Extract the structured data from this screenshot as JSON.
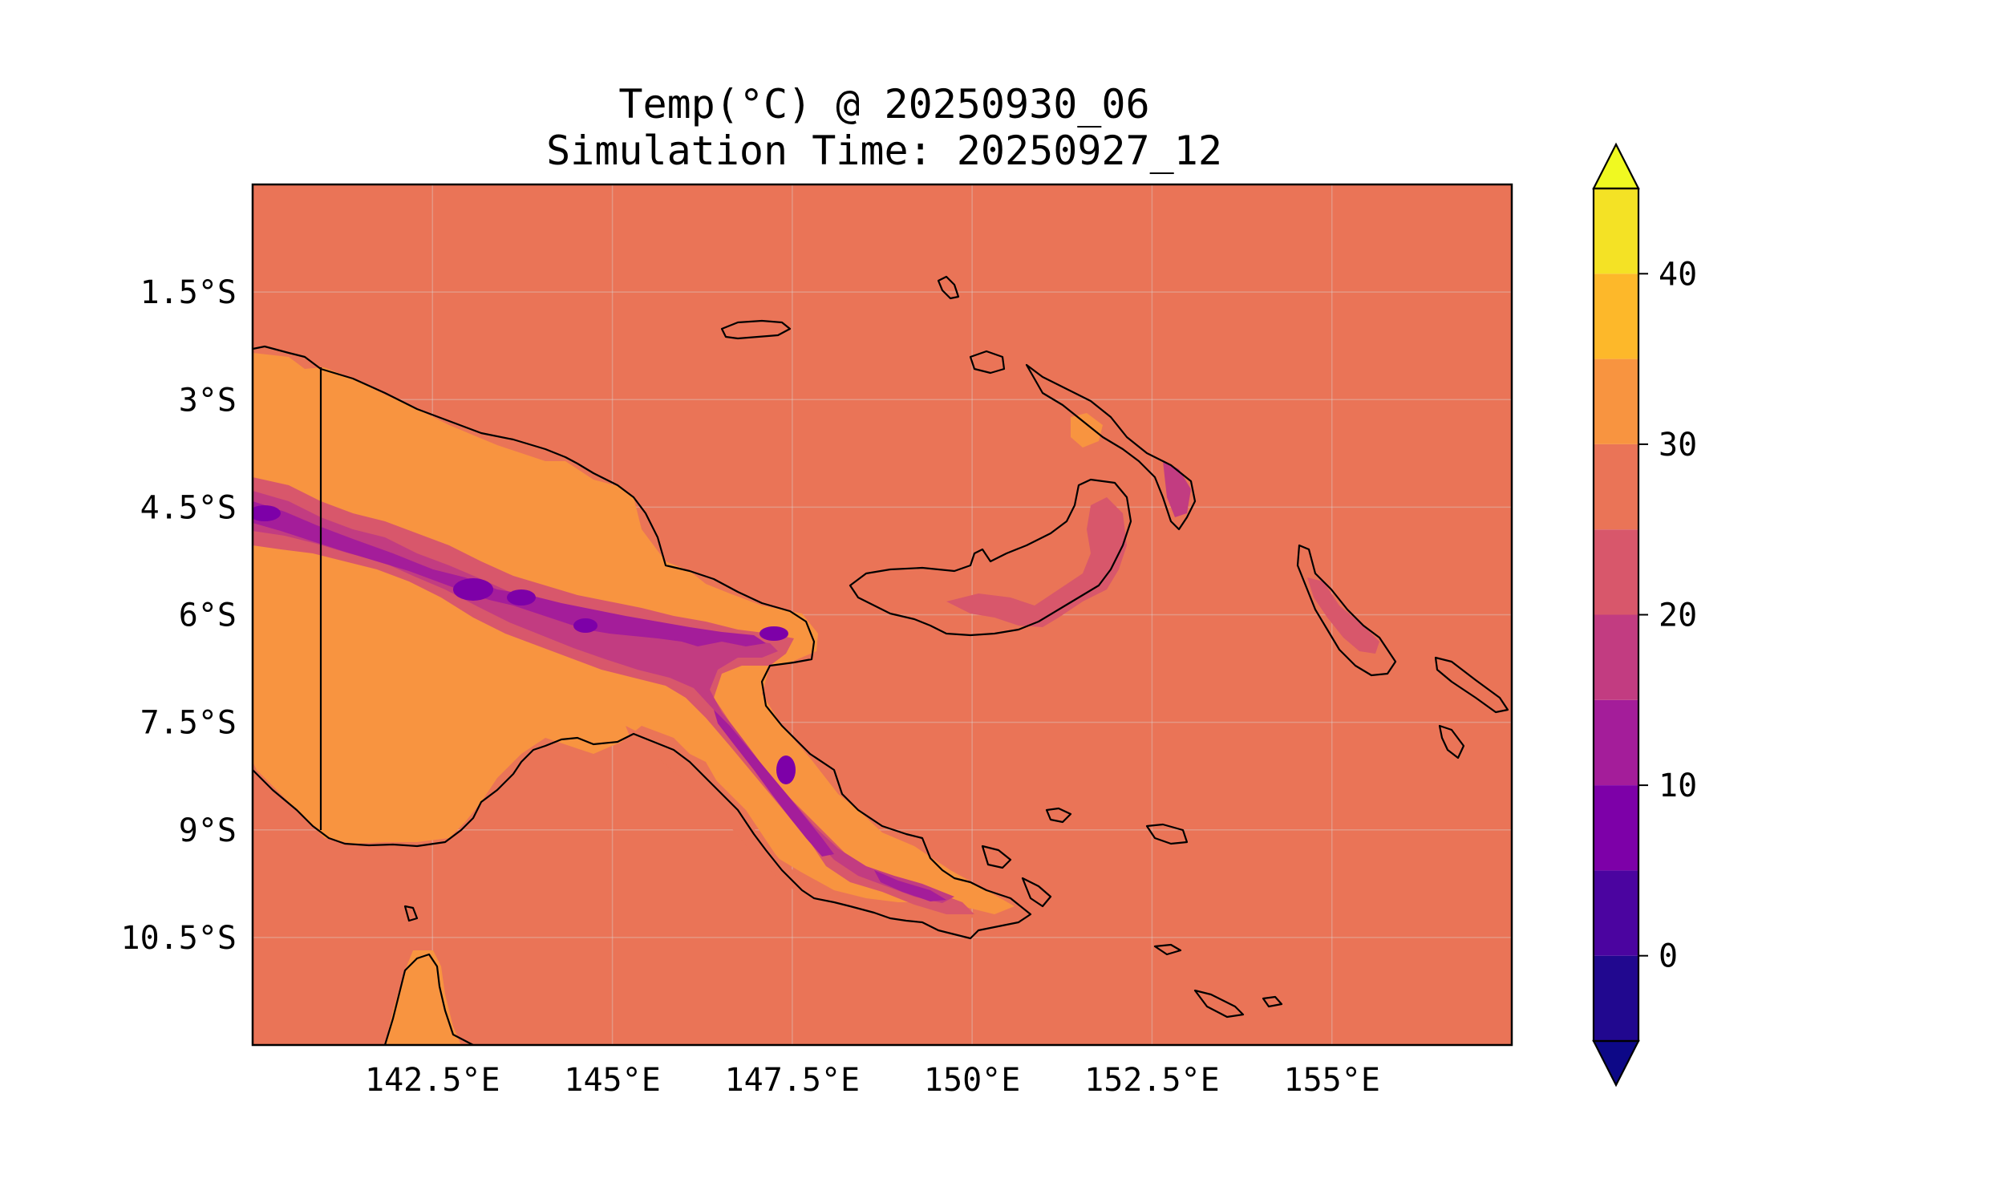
{
  "title": {
    "line1": "Temp(°C) @ 20250930_06",
    "line2": "Simulation Time: 20250927_12"
  },
  "chart_data": {
    "type": "heatmap",
    "title": "Temp(°C) @ 20250930_06\nSimulation Time: 20250927_12",
    "variable": "Temp(°C)",
    "valid_time": "20250930_06",
    "simulation_time": "20250927_12",
    "region": "Papua New Guinea",
    "xlim": [
      140,
      157.5
    ],
    "ylim": [
      -12,
      0
    ],
    "x_ticks": [
      {
        "value": 142.5,
        "label": "142.5°E"
      },
      {
        "value": 145,
        "label": "145°E"
      },
      {
        "value": 147.5,
        "label": "147.5°E"
      },
      {
        "value": 150,
        "label": "150°E"
      },
      {
        "value": 152.5,
        "label": "152.5°E"
      },
      {
        "value": 155,
        "label": "155°E"
      }
    ],
    "y_ticks": [
      {
        "value": -1.5,
        "label": "1.5°S"
      },
      {
        "value": -3,
        "label": "3°S"
      },
      {
        "value": -4.5,
        "label": "4.5°S"
      },
      {
        "value": -6,
        "label": "6°S"
      },
      {
        "value": -7.5,
        "label": "7.5°S"
      },
      {
        "value": -9,
        "label": "9°S"
      },
      {
        "value": -10.5,
        "label": "10.5°S"
      }
    ],
    "grid": true,
    "colorbar": {
      "colormap": "plasma",
      "levels": [
        -5,
        0,
        5,
        10,
        15,
        20,
        25,
        30,
        35,
        40,
        45
      ],
      "colors": [
        "#21088f",
        "#4b04a0",
        "#7d00a8",
        "#a41d9a",
        "#c23c81",
        "#d8576b",
        "#ea7457",
        "#f89440",
        "#fdb82a",
        "#f4e225"
      ],
      "extend_min_color": "#0d0887",
      "extend_max_color": "#f0f921",
      "tick_values": [
        0,
        10,
        20,
        30,
        40
      ],
      "tick_labels": [
        "0",
        "10",
        "20",
        "30",
        "40"
      ],
      "extend": "both"
    },
    "field_summary": {
      "ocean_value_range": [
        25,
        30
      ],
      "highland_value_range": [
        10,
        20
      ],
      "lowland_value_range": [
        30,
        35
      ]
    }
  }
}
